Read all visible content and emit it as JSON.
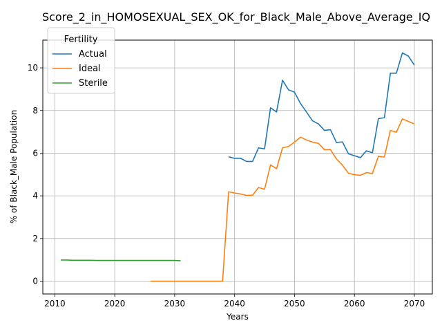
{
  "chart_data": {
    "type": "line",
    "title": "Score_2_in_HOMOSEXUAL_SEX_OK_for_Black_Male_Above_Average_IQ",
    "xlabel": "Years",
    "ylabel": "% of Black_Male Population",
    "xlim": [
      2008,
      2073
    ],
    "ylim": [
      -0.6,
      11.3
    ],
    "x_ticks": [
      2010,
      2020,
      2030,
      2040,
      2050,
      2060,
      2070
    ],
    "y_ticks": [
      0,
      2,
      4,
      6,
      8,
      10
    ],
    "grid": true,
    "legend": {
      "title": "Fertility",
      "position": "top-left"
    },
    "series": [
      {
        "name": "Actual",
        "color": "#1f77b4",
        "x": [
          2039,
          2040,
          2041,
          2042,
          2043,
          2044,
          2045,
          2046,
          2047,
          2048,
          2049,
          2050,
          2051,
          2052,
          2053,
          2054,
          2055,
          2056,
          2057,
          2058,
          2059,
          2060,
          2061,
          2062,
          2063,
          2064,
          2065,
          2066,
          2067,
          2068,
          2069,
          2070
        ],
        "y": [
          5.83,
          5.76,
          5.76,
          5.61,
          5.61,
          6.25,
          6.2,
          8.13,
          7.93,
          9.42,
          8.97,
          8.86,
          8.33,
          7.93,
          7.52,
          7.37,
          7.07,
          7.1,
          6.5,
          6.53,
          5.97,
          5.88,
          5.79,
          6.11,
          6.02,
          7.62,
          7.66,
          9.75,
          9.75,
          10.7,
          10.55,
          10.13
        ]
      },
      {
        "name": "Ideal",
        "color": "#ff7f0e",
        "x": [
          2026,
          2027,
          2028,
          2029,
          2030,
          2031,
          2032,
          2033,
          2034,
          2035,
          2036,
          2037,
          2038,
          2039,
          2040,
          2041,
          2042,
          2043,
          2044,
          2045,
          2046,
          2047,
          2048,
          2049,
          2050,
          2051,
          2052,
          2053,
          2054,
          2055,
          2056,
          2057,
          2058,
          2059,
          2060,
          2061,
          2062,
          2063,
          2064,
          2065,
          2066,
          2067,
          2068,
          2069,
          2070
        ],
        "y": [
          0.0,
          0.0,
          0.0,
          0.0,
          0.0,
          0.0,
          0.0,
          0.0,
          0.0,
          0.0,
          0.0,
          0.0,
          0.0,
          4.19,
          4.13,
          4.09,
          4.02,
          4.03,
          4.39,
          4.31,
          5.45,
          5.27,
          6.25,
          6.31,
          6.52,
          6.75,
          6.62,
          6.52,
          6.46,
          6.16,
          6.17,
          5.73,
          5.44,
          5.06,
          4.99,
          4.96,
          5.09,
          5.05,
          5.85,
          5.82,
          7.07,
          6.98,
          7.61,
          7.49,
          7.37
        ]
      },
      {
        "name": "Sterile",
        "color": "#2ca02c",
        "x": [
          2011,
          2012,
          2013,
          2014,
          2015,
          2016,
          2017,
          2018,
          2019,
          2020,
          2021,
          2022,
          2023,
          2024,
          2025,
          2026,
          2027,
          2028,
          2029,
          2030,
          2031
        ],
        "y": [
          0.99,
          0.99,
          0.98,
          0.98,
          0.98,
          0.98,
          0.97,
          0.97,
          0.97,
          0.97,
          0.97,
          0.97,
          0.97,
          0.97,
          0.97,
          0.97,
          0.97,
          0.97,
          0.97,
          0.97,
          0.96
        ]
      }
    ]
  }
}
